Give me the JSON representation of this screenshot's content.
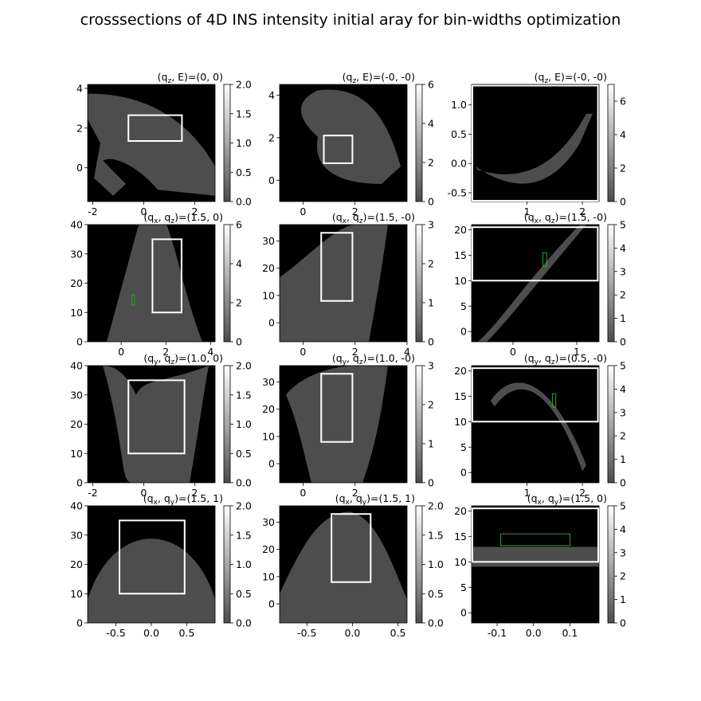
{
  "title": "crosssections of 4D INS intensity initial aray for bin-widths optimization",
  "colors": {
    "background": "#000000",
    "data_region": "#4d4d4d",
    "selection_box": "#ffffff",
    "roi_box": "#2ca02c"
  },
  "chart_data": [
    {
      "type": "heatmap",
      "label": "(q$_z$, E)=(0, 0)",
      "title_parts": [
        "(q",
        "z",
        ", E)=(0, 0)"
      ],
      "xlim": [
        -2.2,
        2.8
      ],
      "ylim": [
        -1.7,
        4.2
      ],
      "xticks": [
        "-2",
        "0",
        "2"
      ],
      "yticks": [
        "0",
        "2",
        "4"
      ],
      "xtick_values": [
        -2,
        0,
        2
      ],
      "ytick_values": [
        0,
        2,
        4
      ],
      "colorbar": {
        "range": [
          0,
          2.0
        ],
        "ticks": [
          "0.0",
          "0.5",
          "1.0",
          "1.5",
          "2.0"
        ],
        "values": [
          0,
          0.5,
          1,
          1.5,
          2
        ]
      },
      "selection_box": {
        "x": [
          -0.6,
          1.5
        ],
        "y": [
          1.35,
          2.65
        ]
      }
    },
    {
      "type": "heatmap",
      "label": "(q$_z$, E)=(-0, -0)",
      "title_parts": [
        "(q",
        "z",
        ", E)=(-0, -0)"
      ],
      "xlim": [
        -0.9,
        4.0
      ],
      "ylim": [
        -1.0,
        4.5
      ],
      "xticks": [
        "0",
        "2"
      ],
      "yticks": [
        "0",
        "2",
        "4"
      ],
      "xtick_values": [
        0,
        2
      ],
      "ytick_values": [
        0,
        2,
        4
      ],
      "colorbar": {
        "range": [
          0,
          6
        ],
        "ticks": [
          "0",
          "2",
          "4",
          "6"
        ],
        "values": [
          0,
          2,
          4,
          6
        ]
      },
      "selection_box": {
        "x": [
          0.8,
          1.9
        ],
        "y": [
          0.8,
          2.1
        ]
      }
    },
    {
      "type": "heatmap",
      "label": "(q$_z$, E)=(-0, -0)",
      "title_parts": [
        "(q",
        "z",
        ", E)=(-0, -0)"
      ],
      "xlim": [
        0.0,
        2.3
      ],
      "ylim": [
        -0.65,
        1.35
      ],
      "xticks": [
        "1",
        "2"
      ],
      "yticks": [
        "-0.5",
        "0.0",
        "0.5",
        "1.0"
      ],
      "xtick_values": [
        1,
        2
      ],
      "ytick_values": [
        -0.5,
        0,
        0.5,
        1.0
      ],
      "colorbar": {
        "range": [
          0,
          7
        ],
        "ticks": [
          "0",
          "2",
          "4",
          "6"
        ],
        "values": [
          0,
          2,
          4,
          6
        ]
      },
      "selection_box": {
        "x": [
          0.0,
          2.28
        ],
        "y": [
          -0.65,
          1.33
        ]
      }
    },
    {
      "type": "heatmap",
      "label": "(q$_x$, q$_z$)=(1.5, 0)",
      "title_parts": [
        "(q",
        "x",
        ", q",
        "z",
        ")=(1.5, 0)"
      ],
      "xlim": [
        -1.5,
        4.2
      ],
      "ylim": [
        0,
        40
      ],
      "xticks": [
        "0",
        "2",
        "4"
      ],
      "yticks": [
        "0",
        "10",
        "20",
        "30",
        "40"
      ],
      "xtick_values": [
        0,
        2,
        4
      ],
      "ytick_values": [
        0,
        10,
        20,
        30,
        40
      ],
      "colorbar": {
        "range": [
          0,
          6
        ],
        "ticks": [
          "0",
          "2",
          "4",
          "6"
        ],
        "values": [
          0,
          2,
          4,
          6
        ]
      },
      "selection_box": {
        "x": [
          1.4,
          2.7
        ],
        "y": [
          10,
          35
        ]
      },
      "roi_box": {
        "x": [
          0.48,
          0.6
        ],
        "y": [
          12.5,
          16
        ]
      }
    },
    {
      "type": "heatmap",
      "label": "(q$_x$, q$_z$)=(1.5, -0)",
      "title_parts": [
        "(q",
        "x",
        ", q",
        "z",
        ")=(1.5, -0)"
      ],
      "xlim": [
        -0.9,
        4.0
      ],
      "ylim": [
        -7,
        36
      ],
      "xticks": [
        "0",
        "2",
        "4"
      ],
      "yticks": [
        "0",
        "10",
        "20",
        "30"
      ],
      "xtick_values": [
        0,
        2,
        4
      ],
      "ytick_values": [
        0,
        10,
        20,
        30
      ],
      "colorbar": {
        "range": [
          0,
          3
        ],
        "ticks": [
          "0",
          "1",
          "2",
          "3"
        ],
        "values": [
          0,
          1,
          2,
          3
        ]
      },
      "selection_box": {
        "x": [
          0.7,
          1.9
        ],
        "y": [
          8,
          33
        ]
      }
    },
    {
      "type": "heatmap",
      "label": "(q$_x$, q$_z$)=(1.5, -0)",
      "title_parts": [
        "(q",
        "x",
        ", q",
        "z",
        ")=(1.5, -0)"
      ],
      "xlim": [
        -0.65,
        1.35
      ],
      "ylim": [
        -2,
        21
      ],
      "xticks": [
        "0",
        "1"
      ],
      "yticks": [
        "0",
        "5",
        "10",
        "15",
        "20"
      ],
      "xtick_values": [
        0,
        1
      ],
      "ytick_values": [
        0,
        5,
        10,
        15,
        20
      ],
      "colorbar": {
        "range": [
          0,
          5
        ],
        "ticks": [
          "0",
          "1",
          "2",
          "3",
          "4",
          "5"
        ],
        "values": [
          0,
          1,
          2,
          3,
          4,
          5
        ]
      },
      "selection_box": {
        "x": [
          -0.65,
          1.33
        ],
        "y": [
          10,
          20.5
        ]
      },
      "roi_box": {
        "x": [
          0.47,
          0.53
        ],
        "y": [
          12.8,
          15.5
        ]
      }
    },
    {
      "type": "heatmap",
      "label": "(q$_y$, q$_z$)=(1.0, 0)",
      "title_parts": [
        "(q",
        "y",
        ", q",
        "z",
        ")=(1.0, 0)"
      ],
      "xlim": [
        -2.2,
        2.8
      ],
      "ylim": [
        0,
        40
      ],
      "xticks": [
        "-2",
        "0",
        "2"
      ],
      "yticks": [
        "0",
        "10",
        "20",
        "30",
        "40"
      ],
      "xtick_values": [
        -2,
        0,
        2
      ],
      "ytick_values": [
        0,
        10,
        20,
        30,
        40
      ],
      "colorbar": {
        "range": [
          0,
          2.0
        ],
        "ticks": [
          "0.0",
          "0.5",
          "1.0",
          "1.5",
          "2.0"
        ],
        "values": [
          0,
          0.5,
          1,
          1.5,
          2
        ]
      },
      "selection_box": {
        "x": [
          -0.6,
          1.6
        ],
        "y": [
          10,
          35
        ]
      }
    },
    {
      "type": "heatmap",
      "label": "(q$_y$, q$_z$)=(1.0, -0)",
      "title_parts": [
        "(q",
        "y",
        ", q",
        "z",
        ")=(1.0, -0)"
      ],
      "xlim": [
        -0.9,
        4.0
      ],
      "ylim": [
        -7,
        36
      ],
      "xticks": [
        "0",
        "2"
      ],
      "yticks": [
        "0",
        "10",
        "20",
        "30"
      ],
      "xtick_values": [
        0,
        2
      ],
      "ytick_values": [
        0,
        10,
        20,
        30
      ],
      "colorbar": {
        "range": [
          0,
          3
        ],
        "ticks": [
          "0",
          "1",
          "2",
          "3"
        ],
        "values": [
          0,
          1,
          2,
          3
        ]
      },
      "selection_box": {
        "x": [
          0.7,
          1.9
        ],
        "y": [
          8,
          33
        ]
      }
    },
    {
      "type": "heatmap",
      "label": "(q$_y$, q$_z$)=(0.5, -0)",
      "title_parts": [
        "(q",
        "y",
        ", q",
        "z",
        ")=(0.5, -0)"
      ],
      "xlim": [
        0.0,
        2.3
      ],
      "ylim": [
        -2,
        21
      ],
      "xticks": [
        "1",
        "2"
      ],
      "yticks": [
        "0",
        "5",
        "10",
        "15",
        "20"
      ],
      "xtick_values": [
        1,
        2
      ],
      "ytick_values": [
        0,
        5,
        10,
        15,
        20
      ],
      "colorbar": {
        "range": [
          0,
          5
        ],
        "ticks": [
          "0",
          "1",
          "2",
          "3",
          "4",
          "5"
        ],
        "values": [
          0,
          1,
          2,
          3,
          4,
          5
        ]
      },
      "selection_box": {
        "x": [
          0.0,
          2.28
        ],
        "y": [
          10,
          20.5
        ]
      },
      "roi_box": {
        "x": [
          1.46,
          1.52
        ],
        "y": [
          12.8,
          15.5
        ]
      }
    },
    {
      "type": "heatmap",
      "label": "(q$_x$, q$_y$)=(1.5, 1)",
      "title_parts": [
        "(q",
        "x",
        ", q",
        "y",
        ")=(1.5, 1)"
      ],
      "xlim": [
        -0.9,
        0.9
      ],
      "ylim": [
        0,
        40
      ],
      "xticks": [
        "-0.5",
        "0.0",
        "0.5"
      ],
      "yticks": [
        "0",
        "10",
        "20",
        "30",
        "40"
      ],
      "xtick_values": [
        -0.5,
        0,
        0.5
      ],
      "ytick_values": [
        0,
        10,
        20,
        30,
        40
      ],
      "colorbar": {
        "range": [
          0,
          2.0
        ],
        "ticks": [
          "0.0",
          "0.5",
          "1.0",
          "1.5",
          "2.0"
        ],
        "values": [
          0,
          0.5,
          1,
          1.5,
          2
        ]
      },
      "selection_box": {
        "x": [
          -0.45,
          0.47
        ],
        "y": [
          10,
          35
        ]
      }
    },
    {
      "type": "heatmap",
      "label": "(q$_x$, q$_y$)=(1.5, 1)",
      "title_parts": [
        "(q",
        "x",
        ", q",
        "y",
        ")=(1.5, 1)"
      ],
      "xlim": [
        -0.8,
        0.6
      ],
      "ylim": [
        -7,
        36
      ],
      "xticks": [
        "-0.5",
        "0.0",
        "0.5"
      ],
      "yticks": [
        "0",
        "10",
        "20",
        "30"
      ],
      "xtick_values": [
        -0.5,
        0,
        0.5
      ],
      "ytick_values": [
        0,
        10,
        20,
        30
      ],
      "colorbar": {
        "range": [
          0,
          2.0
        ],
        "ticks": [
          "0.0",
          "0.5",
          "1.0",
          "1.5",
          "2.0"
        ],
        "values": [
          0,
          0.5,
          1,
          1.5,
          2
        ]
      },
      "selection_box": {
        "x": [
          -0.23,
          0.2
        ],
        "y": [
          8,
          33
        ]
      }
    },
    {
      "type": "heatmap",
      "label": "(q$_x$, q$_y$)=(1.5, 0)",
      "title_parts": [
        "(q",
        "x",
        ", q",
        "y",
        ")=(1.5, 0)"
      ],
      "xlim": [
        -0.17,
        0.18
      ],
      "ylim": [
        -2,
        21
      ],
      "xticks": [
        "-0.1",
        "0.0",
        "0.1"
      ],
      "yticks": [
        "0",
        "5",
        "10",
        "15",
        "20"
      ],
      "xtick_values": [
        -0.1,
        0,
        0.1
      ],
      "ytick_values": [
        0,
        5,
        10,
        15,
        20
      ],
      "colorbar": {
        "range": [
          0,
          5
        ],
        "ticks": [
          "0",
          "1",
          "2",
          "3",
          "4",
          "5"
        ],
        "values": [
          0,
          1,
          2,
          3,
          4,
          5
        ]
      },
      "selection_box": {
        "x": [
          -0.17,
          0.178
        ],
        "y": [
          10,
          20.5
        ]
      },
      "roi_box": {
        "x": [
          -0.09,
          0.1
        ],
        "y": [
          13.2,
          15.5
        ]
      }
    }
  ]
}
